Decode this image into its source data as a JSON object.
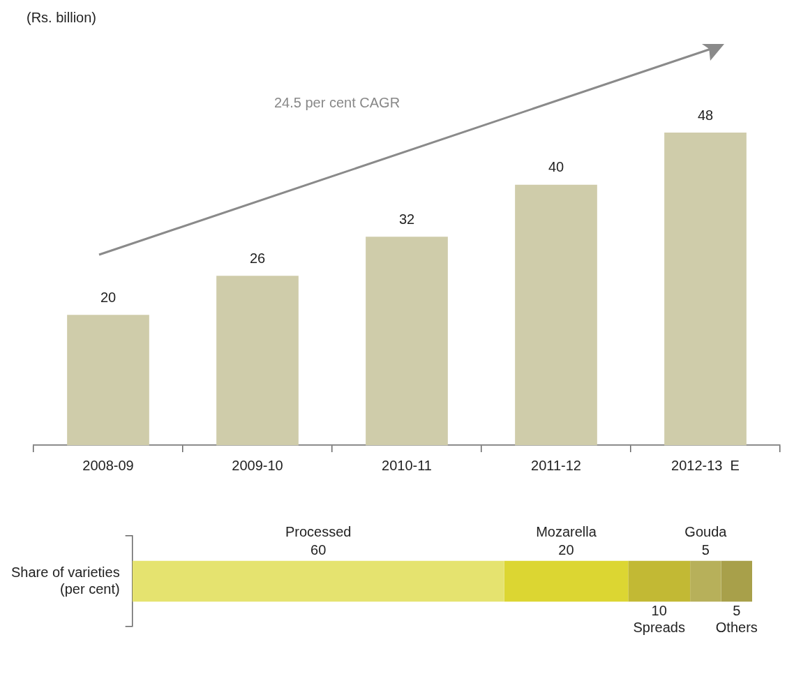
{
  "chart_data": [
    {
      "type": "bar",
      "ylabel": "(Rs. billion)",
      "categories": [
        "2008-09",
        "2009-10",
        "2010-11",
        "2011-12",
        "2012-13  E"
      ],
      "values": [
        20,
        26,
        32,
        40,
        48
      ],
      "color": "#cfccaa",
      "data_labels": true,
      "grid": false,
      "legend": false,
      "annotations": [
        "24.5 per cent CAGR"
      ]
    },
    {
      "type": "bar",
      "orientation": "horizontal",
      "stacked": true,
      "categories": [
        "Share of varieties (per cent)"
      ],
      "data_labels": true,
      "legend": false,
      "grid": false,
      "series": [
        {
          "name": "Processed",
          "color": "#e5e36f",
          "values": [
            60
          ]
        },
        {
          "name": "Mozarella",
          "color": "#dcd632",
          "values": [
            20
          ]
        },
        {
          "name": "Spreads",
          "color": "#c2b934",
          "values": [
            10
          ]
        },
        {
          "name": "Gouda",
          "color": "#b7b05a",
          "values": [
            5
          ]
        },
        {
          "name": "Others",
          "color": "#a8a04a",
          "values": [
            5
          ]
        }
      ]
    }
  ]
}
